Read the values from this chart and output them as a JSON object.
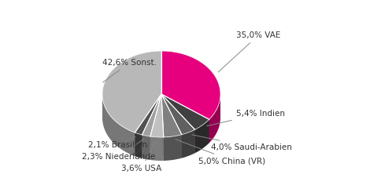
{
  "labels": [
    "VAE",
    "Indien",
    "Saudi-Arabien",
    "China (VR)",
    "USA",
    "Niederlande",
    "Brasilien",
    "Sonst."
  ],
  "values": [
    35.0,
    5.4,
    4.0,
    5.0,
    3.6,
    2.3,
    2.1,
    42.6
  ],
  "colors": [
    "#e6007e",
    "#404040",
    "#606060",
    "#808080",
    "#c0c0c0",
    "#a0a0a0",
    "#505050",
    "#b8b8b8"
  ],
  "edge_colors": [
    "#cc0066",
    "#2a2a2a",
    "#484848",
    "#666666",
    "#a8a8a8",
    "#888888",
    "#383838",
    "#a0a0a0"
  ],
  "label_texts": [
    "35,0% VAE",
    "5,4% Indien",
    "4,0% Saudi-Arabien",
    "5,0% China (VR)",
    "3,6% USA",
    "2,3% Niederlande",
    "2,1% Brasilien",
    "42,6% Sonst."
  ],
  "startangle": 90,
  "figsize": [
    4.7,
    2.5
  ],
  "dpi": 100,
  "font_size": 7.5,
  "label_color": "#333333",
  "background_color": "#ffffff",
  "depth": 0.12,
  "label_positions": [
    {
      "ha": "left",
      "va": "center"
    },
    {
      "ha": "left",
      "va": "center"
    },
    {
      "ha": "left",
      "va": "center"
    },
    {
      "ha": "left",
      "va": "center"
    },
    {
      "ha": "right",
      "va": "center"
    },
    {
      "ha": "right",
      "va": "center"
    },
    {
      "ha": "right",
      "va": "center"
    },
    {
      "ha": "right",
      "va": "center"
    }
  ]
}
